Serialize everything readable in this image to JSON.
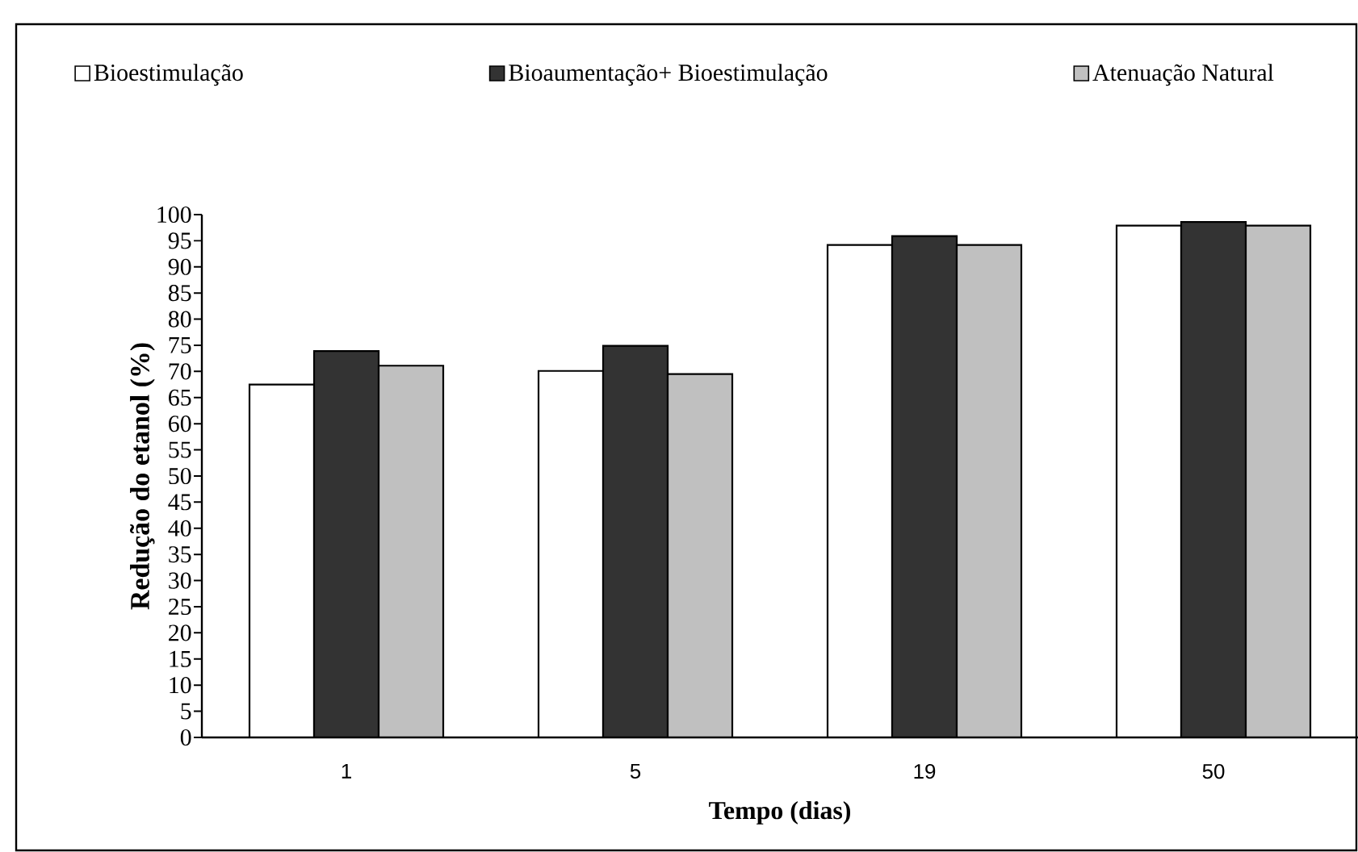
{
  "chart_data": {
    "type": "bar",
    "xlabel": "Tempo (dias)",
    "ylabel": "Redução do etanol (%)",
    "categories": [
      "1",
      "5",
      "19",
      "50"
    ],
    "series": [
      {
        "name": "Bioestimulação",
        "color": "#ffffff",
        "values": [
          67.5,
          70.1,
          94.2,
          97.9
        ]
      },
      {
        "name": "Bioaumentação+ Bioestimulação",
        "color": "#333333",
        "values": [
          73.9,
          74.9,
          95.9,
          98.6
        ]
      },
      {
        "name": "Atenuação Natural",
        "color": "#c0c0c0",
        "values": [
          71.1,
          69.5,
          94.2,
          97.9
        ]
      }
    ],
    "ylim": [
      0,
      100
    ],
    "yticks": [
      0,
      5,
      10,
      15,
      20,
      25,
      30,
      35,
      40,
      45,
      50,
      55,
      60,
      65,
      70,
      75,
      80,
      85,
      90,
      95,
      100
    ],
    "legend": "top"
  }
}
